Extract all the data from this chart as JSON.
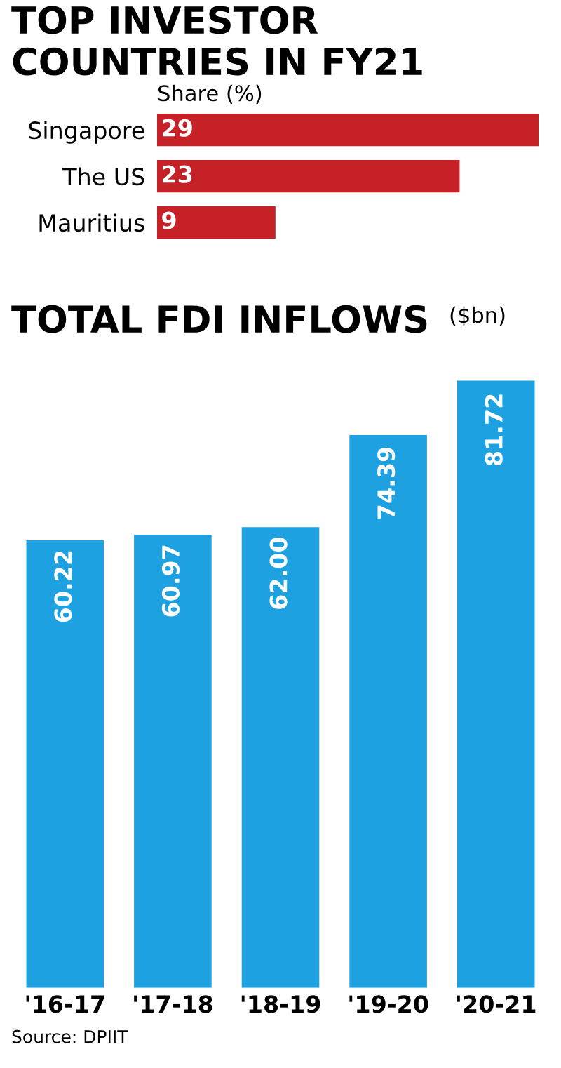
{
  "chart_data": [
    {
      "type": "bar",
      "orientation": "horizontal",
      "title": "TOP INVESTOR COUNTRIES IN FY21",
      "subtitle": "Share (%)",
      "categories": [
        "Singapore",
        "The US",
        "Mauritius"
      ],
      "values": [
        29,
        23,
        9
      ],
      "color": "#c62127",
      "data_labels": true
    },
    {
      "type": "bar",
      "title": "TOTAL FDI INFLOWS",
      "ylabel": "($bn)",
      "categories": [
        "'16-17",
        "'17-18",
        "'18-19",
        "'19-20",
        "'20-21"
      ],
      "values": [
        60.22,
        60.97,
        62.0,
        74.39,
        81.72
      ],
      "value_labels": [
        "60.22",
        "60.97",
        "62.00",
        "74.39",
        "81.72"
      ],
      "color": "#1ea1e1",
      "annotations": [
        "Source: DPIIT"
      ]
    }
  ]
}
